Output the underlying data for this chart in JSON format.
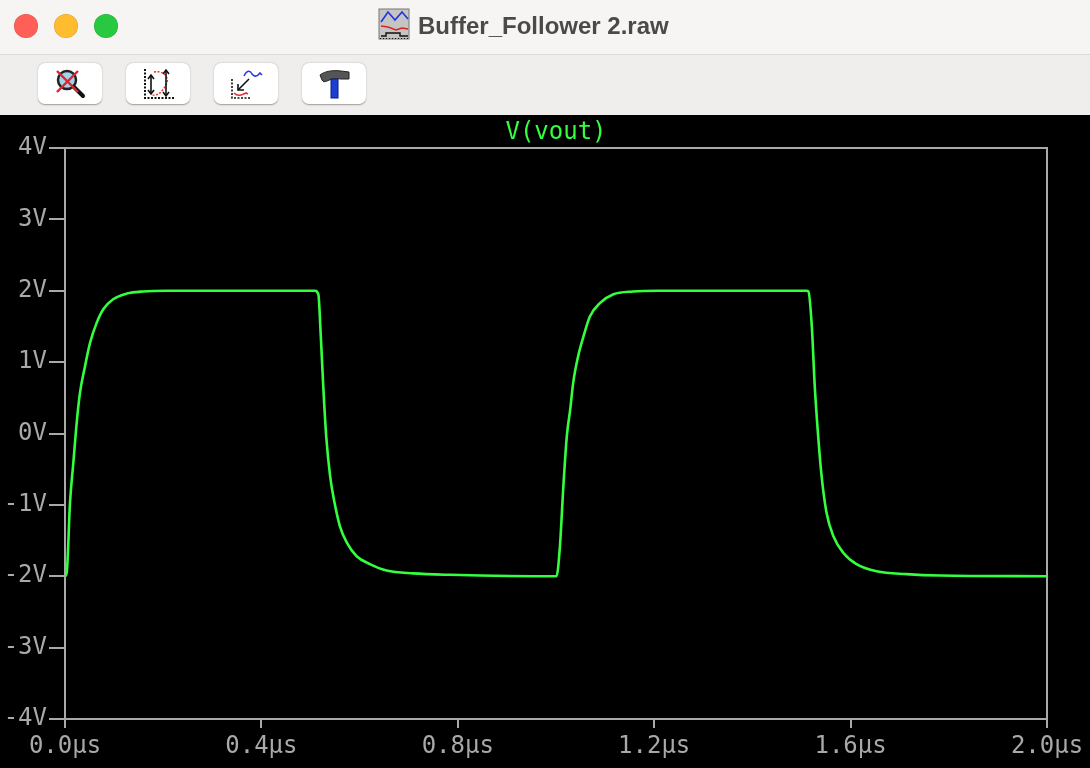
{
  "chart_data": {
    "type": "line",
    "title": "Buffer_Follower 2.raw",
    "xlim": [
      0,
      2.0
    ],
    "xticks": [
      {
        "value": 0,
        "label": "0.0µs"
      },
      {
        "value": 0.4,
        "label": "0.4µs"
      },
      {
        "value": 0.8,
        "label": "0.8µs"
      },
      {
        "value": 1.2,
        "label": "1.2µs"
      },
      {
        "value": 1.6,
        "label": "1.6µs"
      },
      {
        "value": 2.0,
        "label": "2.0µs"
      }
    ],
    "ylim": [
      -4,
      4
    ],
    "yticks": [
      {
        "value": -4,
        "label": "-4V"
      },
      {
        "value": -3,
        "label": "-3V"
      },
      {
        "value": -2,
        "label": "-2V"
      },
      {
        "value": -1,
        "label": "-1V"
      },
      {
        "value": 0,
        "label": "0V"
      },
      {
        "value": 1,
        "label": "1V"
      },
      {
        "value": 2,
        "label": "2V"
      },
      {
        "value": 3,
        "label": "3V"
      },
      {
        "value": 4,
        "label": "4V"
      }
    ],
    "legend": "top",
    "x": [
      0,
      0.0035,
      0.0102,
      0.017,
      0.0238,
      0.0305,
      0.0407,
      0.051,
      0.0645,
      0.078,
      0.098,
      0.126,
      0.159,
      0.207,
      0.509,
      0.516,
      0.521,
      0.526,
      0.532,
      0.54,
      0.549,
      0.56,
      0.574,
      0.594,
      0.621,
      0.655,
      0.709,
      0.784,
      1.001,
      1.008,
      1.015,
      1.022,
      1.029,
      1.035,
      1.045,
      1.056,
      1.069,
      1.09,
      1.117,
      1.157,
      1.207,
      1.51,
      1.514,
      1.521,
      1.527,
      1.534,
      1.541,
      1.551,
      1.565,
      1.585,
      1.612,
      1.653,
      1.714,
      1.782,
      2.0
    ],
    "series": [
      {
        "name": "V(vout)",
        "color": "#33ff3f",
        "values": [
          -2.0,
          -1.95,
          -0.97,
          -0.41,
          0.15,
          0.57,
          0.94,
          1.27,
          1.55,
          1.74,
          1.88,
          1.96,
          1.99,
          2.0,
          2.0,
          1.95,
          1.36,
          0.66,
          -0.04,
          -0.6,
          -0.97,
          -1.3,
          -1.53,
          -1.72,
          -1.83,
          -1.92,
          -1.96,
          -1.98,
          -2.0,
          -1.58,
          -0.74,
          -0.04,
          0.34,
          0.71,
          1.08,
          1.36,
          1.64,
          1.83,
          1.95,
          1.99,
          2.0,
          2.0,
          1.99,
          1.5,
          0.66,
          -0.04,
          -0.6,
          -1.11,
          -1.44,
          -1.67,
          -1.83,
          -1.93,
          -1.97,
          -1.99,
          -2.0
        ]
      }
    ]
  }
}
